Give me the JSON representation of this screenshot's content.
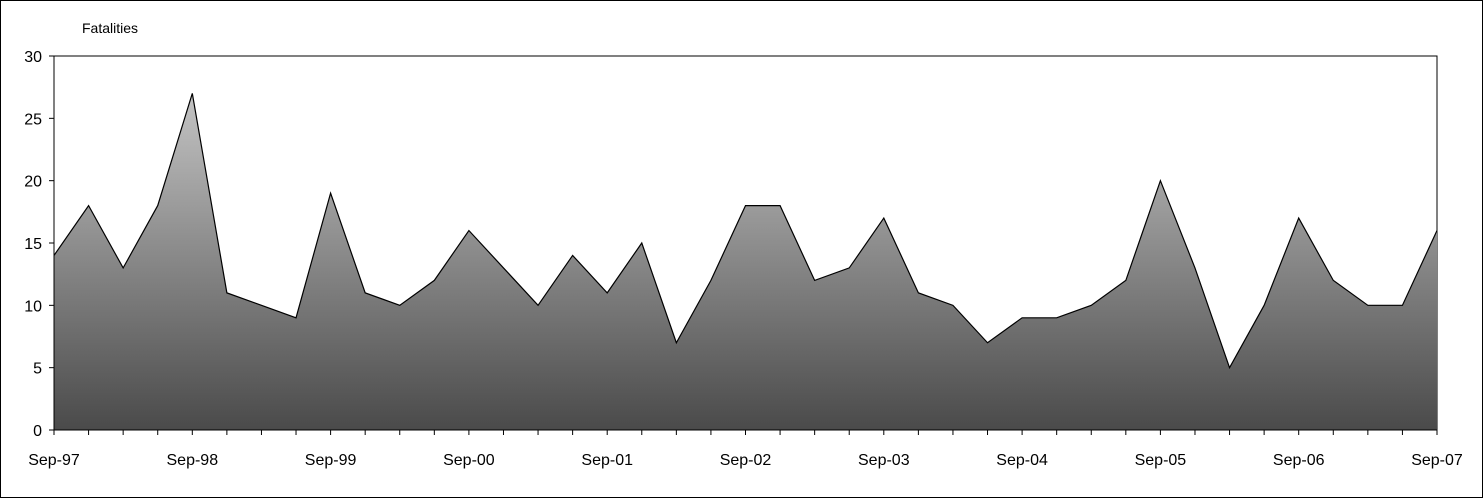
{
  "chart_data": {
    "type": "area",
    "title": "",
    "ylabel": "Fatalities",
    "xlabel": "",
    "ylim": [
      0,
      30
    ],
    "y_ticks": [
      0,
      5,
      10,
      15,
      20,
      25,
      30
    ],
    "x_tick_labels": [
      "Sep-97",
      "Sep-98",
      "Sep-99",
      "Sep-00",
      "Sep-01",
      "Sep-02",
      "Sep-03",
      "Sep-04",
      "Sep-05",
      "Sep-06",
      "Sep-07"
    ],
    "grid": false,
    "legend": "none",
    "colors": {
      "fill_top": "#c4c4c4",
      "fill_bottom": "#4a4a4a",
      "line": "#000000"
    },
    "series": [
      {
        "x": [
          "Sep-97",
          "Dec-97",
          "Mar-98",
          "Jun-98",
          "Sep-98",
          "Dec-98",
          "Mar-99",
          "Jun-99",
          "Sep-99",
          "Dec-99",
          "Mar-00",
          "Jun-00",
          "Sep-00",
          "Dec-00",
          "Mar-01",
          "Jun-01",
          "Sep-01",
          "Dec-01",
          "Mar-02",
          "Jun-02",
          "Sep-02",
          "Dec-02",
          "Mar-03",
          "Jun-03",
          "Sep-03",
          "Dec-03",
          "Mar-04",
          "Jun-04",
          "Sep-04",
          "Dec-04",
          "Mar-05",
          "Jun-05",
          "Sep-05",
          "Dec-05",
          "Mar-06",
          "Jun-06",
          "Sep-06",
          "Dec-06",
          "Mar-07",
          "Jun-07",
          "Sep-07"
        ],
        "values": [
          14,
          18,
          13,
          18,
          27,
          11,
          10,
          9,
          19,
          11,
          10,
          12,
          16,
          13,
          10,
          14,
          11,
          15,
          7,
          12,
          18,
          18,
          12,
          13,
          17,
          11,
          10,
          7,
          9,
          9,
          10,
          12,
          20,
          13,
          5,
          10,
          17,
          12,
          10,
          10,
          16
        ]
      }
    ]
  }
}
